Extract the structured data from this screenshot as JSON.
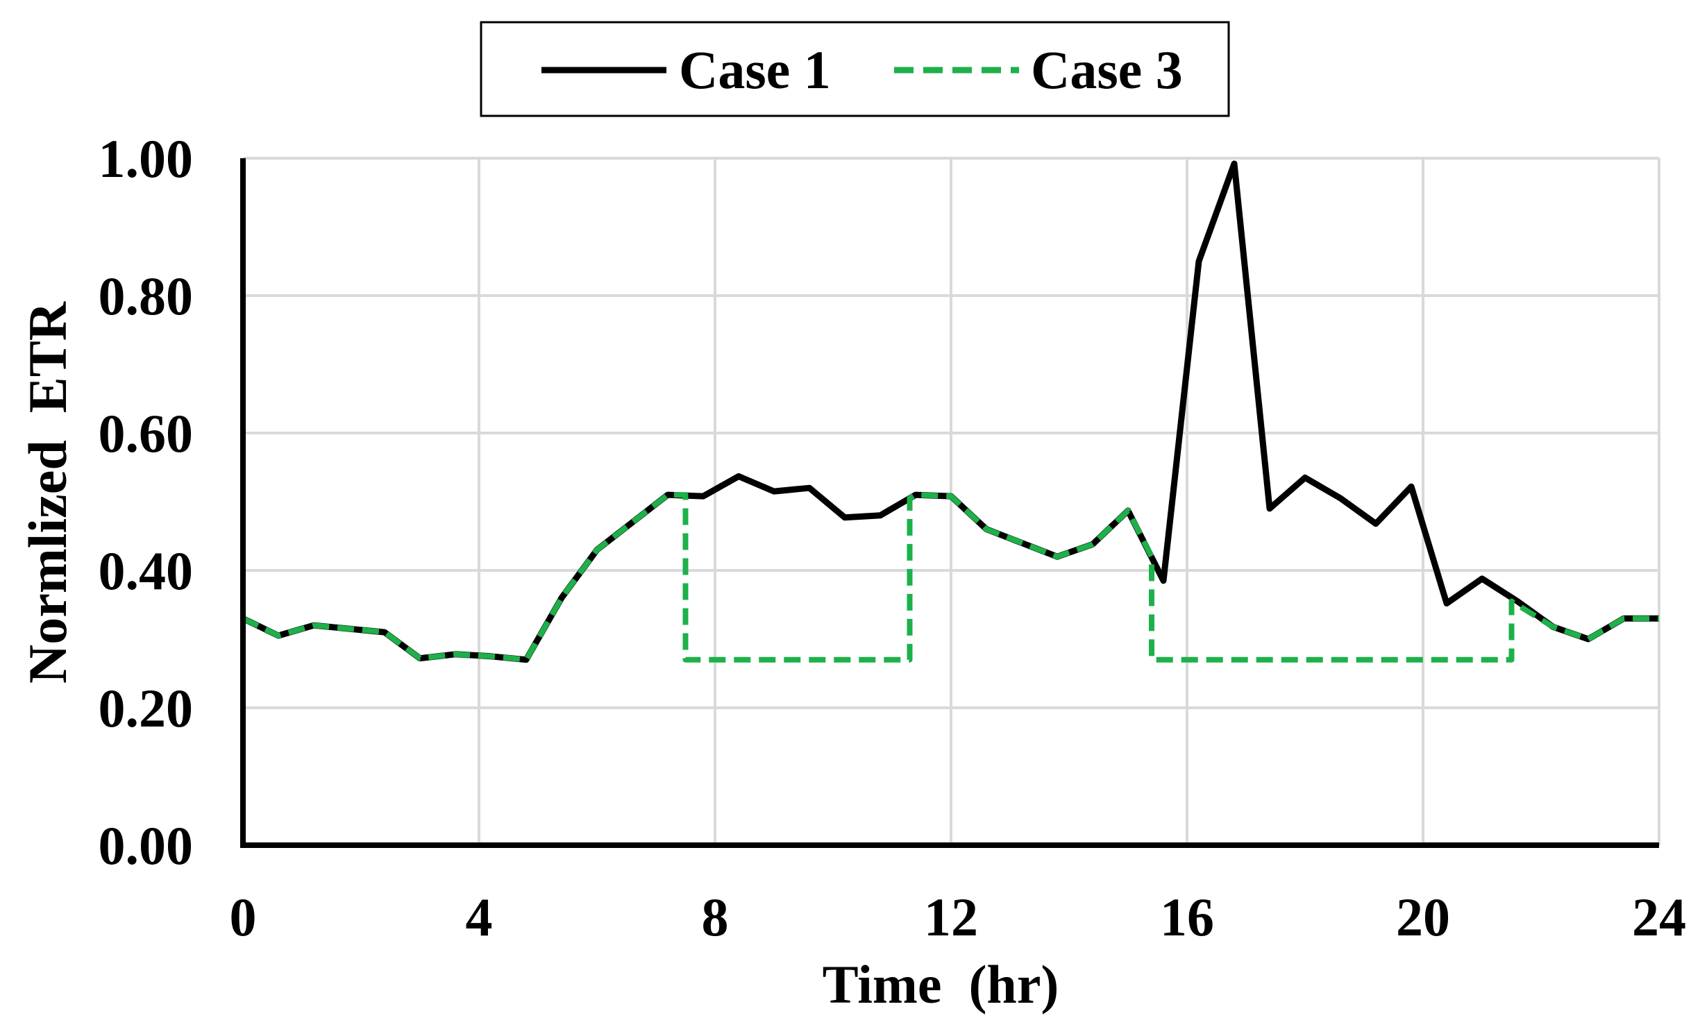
{
  "chart_data": {
    "type": "line",
    "title": "",
    "xlabel": "Time  (hr)",
    "ylabel": "Normlized  ETR",
    "xlim": [
      0,
      24
    ],
    "ylim": [
      0,
      1
    ],
    "xticks": [
      0,
      4,
      8,
      12,
      16,
      20,
      24
    ],
    "xtick_labels": [
      "0",
      "4",
      "8",
      "12",
      "16",
      "20",
      "24"
    ],
    "yticks": [
      0,
      0.2,
      0.4,
      0.6,
      0.8,
      1.0
    ],
    "ytick_labels": [
      "0.00",
      "0.20",
      "0.40",
      "0.60",
      "0.80",
      "1.00"
    ],
    "grid": true,
    "legend_position": "top-center",
    "series": [
      {
        "name": "Case 1",
        "color": "#000000",
        "style": "solid",
        "x": [
          0,
          0.6,
          1.2,
          1.8,
          2.4,
          3.0,
          3.6,
          4.2,
          4.8,
          5.4,
          6.0,
          6.6,
          7.2,
          7.8,
          8.4,
          9.0,
          9.6,
          10.2,
          10.8,
          11.4,
          12.0,
          12.6,
          13.2,
          13.8,
          14.4,
          15.0,
          15.6,
          16.2,
          16.8,
          17.4,
          18.0,
          18.6,
          19.2,
          19.8,
          20.4,
          21.0,
          21.6,
          22.2,
          22.8,
          23.4,
          24.0
        ],
        "y": [
          0.33,
          0.305,
          0.32,
          0.315,
          0.31,
          0.272,
          0.278,
          0.275,
          0.27,
          0.36,
          0.43,
          0.47,
          0.51,
          0.508,
          0.537,
          0.515,
          0.52,
          0.477,
          0.48,
          0.51,
          0.508,
          0.46,
          0.44,
          0.42,
          0.438,
          0.487,
          0.385,
          0.85,
          0.992,
          0.49,
          0.535,
          0.505,
          0.468,
          0.522,
          0.352,
          0.388,
          0.355,
          0.318,
          0.3,
          0.33,
          0.33
        ]
      },
      {
        "name": "Case 3",
        "color": "#1eb04a",
        "style": "dashed",
        "x": [
          0,
          0.6,
          1.2,
          1.8,
          2.4,
          3.0,
          3.6,
          4.2,
          4.8,
          5.4,
          6.0,
          6.6,
          7.2,
          7.5,
          7.5,
          11.3,
          11.3,
          11.4,
          12.0,
          12.6,
          13.2,
          13.8,
          14.4,
          15.0,
          15.4,
          15.4,
          21.5,
          21.5,
          22.2,
          22.8,
          23.4,
          24.0
        ],
        "y": [
          0.33,
          0.305,
          0.32,
          0.315,
          0.31,
          0.272,
          0.278,
          0.275,
          0.27,
          0.36,
          0.43,
          0.47,
          0.51,
          0.51,
          0.27,
          0.27,
          0.505,
          0.51,
          0.508,
          0.46,
          0.44,
          0.42,
          0.438,
          0.487,
          0.42,
          0.27,
          0.27,
          0.355,
          0.318,
          0.3,
          0.33,
          0.33
        ]
      }
    ]
  }
}
